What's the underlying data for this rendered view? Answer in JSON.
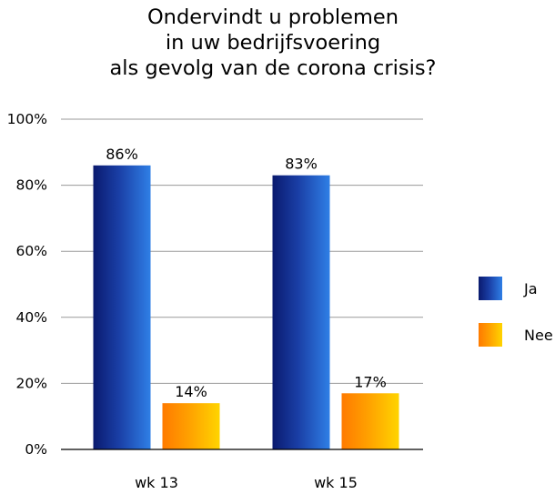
{
  "chart_data": {
    "type": "bar",
    "title_lines": [
      "Ondervindt u problemen",
      "in uw bedrijfsvoering",
      "als gevolg van de corona crisis?"
    ],
    "title": "Ondervindt u problemen in uw bedrijfsvoering als gevolg van de corona crisis?",
    "categories": [
      "wk 13",
      "wk 15"
    ],
    "series": [
      {
        "name": "Ja",
        "values": [
          86,
          83
        ],
        "labels": [
          "86%",
          "83%"
        ],
        "colors": {
          "dark": "#0a1a6e",
          "mid": "#1a3fa6",
          "light": "#2f7fe6"
        }
      },
      {
        "name": "Nee",
        "values": [
          14,
          17
        ],
        "labels": [
          "14%",
          "17%"
        ],
        "colors": {
          "dark": "#ff7a00",
          "mid": "#ffa400",
          "light": "#ffd400"
        }
      }
    ],
    "ylim": [
      0,
      100
    ],
    "yticks": [
      0,
      20,
      40,
      60,
      80,
      100
    ],
    "ytick_labels": [
      "0%",
      "20%",
      "40%",
      "60%",
      "80%",
      "100%"
    ],
    "xlabel": "",
    "ylabel": "",
    "grid": true,
    "legend_position": "right"
  }
}
